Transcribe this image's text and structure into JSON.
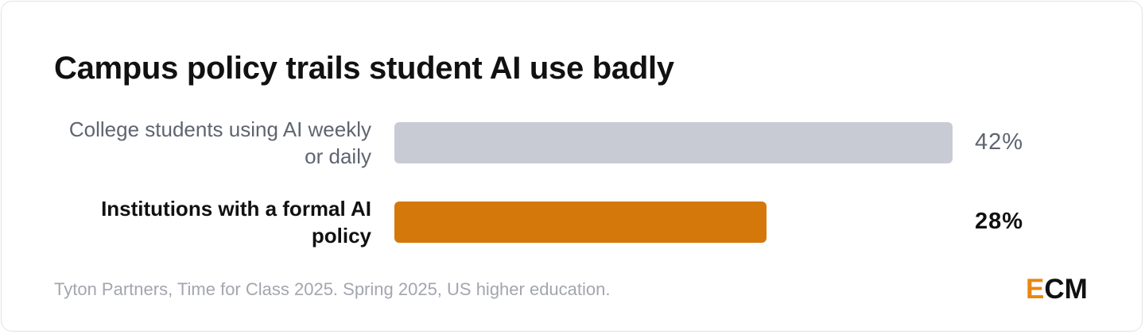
{
  "chart_data": {
    "type": "bar",
    "orientation": "horizontal",
    "title": "Campus policy trails student AI use badly",
    "categories": [
      "College students using AI weekly or daily",
      "Institutions with a formal AI policy"
    ],
    "values": [
      42,
      28
    ],
    "value_labels": [
      "42%",
      "28%"
    ],
    "colors": [
      "#c8cbd3",
      "#d4780b"
    ],
    "highlight_index": 1,
    "source": "Tyton Partners, Time for Class 2025. Spring 2025, US higher education.",
    "logo": {
      "accent": "E",
      "rest": "CM"
    }
  }
}
